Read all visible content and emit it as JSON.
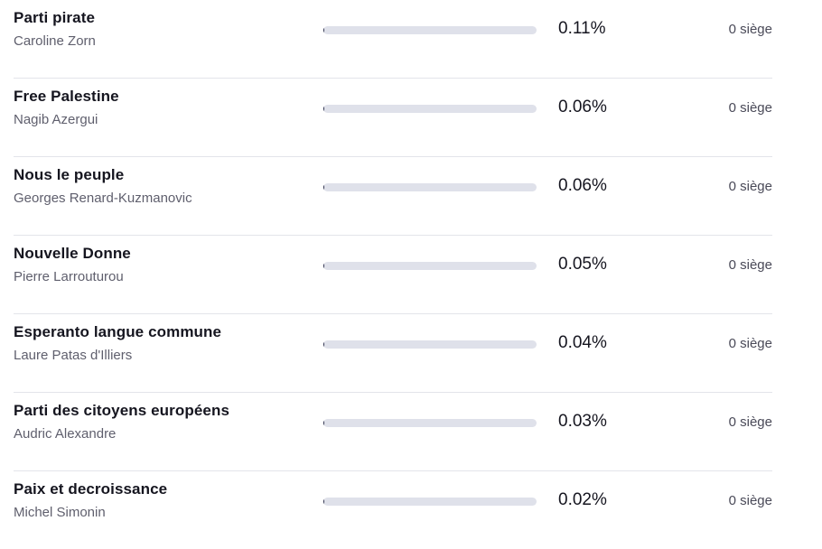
{
  "results": [
    {
      "party": "Parti pirate",
      "leader": "Caroline Zorn",
      "percent": "0.11%",
      "share": 0.11,
      "seats": "0 siège"
    },
    {
      "party": "Free Palestine",
      "leader": "Nagib Azergui",
      "percent": "0.06%",
      "share": 0.06,
      "seats": "0 siège"
    },
    {
      "party": "Nous le peuple",
      "leader": "Georges Renard-Kuzmanovic",
      "percent": "0.06%",
      "share": 0.06,
      "seats": "0 siège"
    },
    {
      "party": "Nouvelle Donne",
      "leader": "Pierre Larrouturou",
      "percent": "0.05%",
      "share": 0.05,
      "seats": "0 siège"
    },
    {
      "party": "Esperanto langue commune",
      "leader": "Laure Patas d'Illiers",
      "percent": "0.04%",
      "share": 0.04,
      "seats": "0 siège"
    },
    {
      "party": "Parti des citoyens européens",
      "leader": "Audric Alexandre",
      "percent": "0.03%",
      "share": 0.03,
      "seats": "0 siège"
    },
    {
      "party": "Paix et decroissance",
      "leader": "Michel Simonin",
      "percent": "0.02%",
      "share": 0.02,
      "seats": "0 siège"
    }
  ],
  "colors": {
    "bar_track": "#dfe1ea",
    "bar_fill": "#2b2e4a",
    "divider": "#e3e4ea"
  }
}
